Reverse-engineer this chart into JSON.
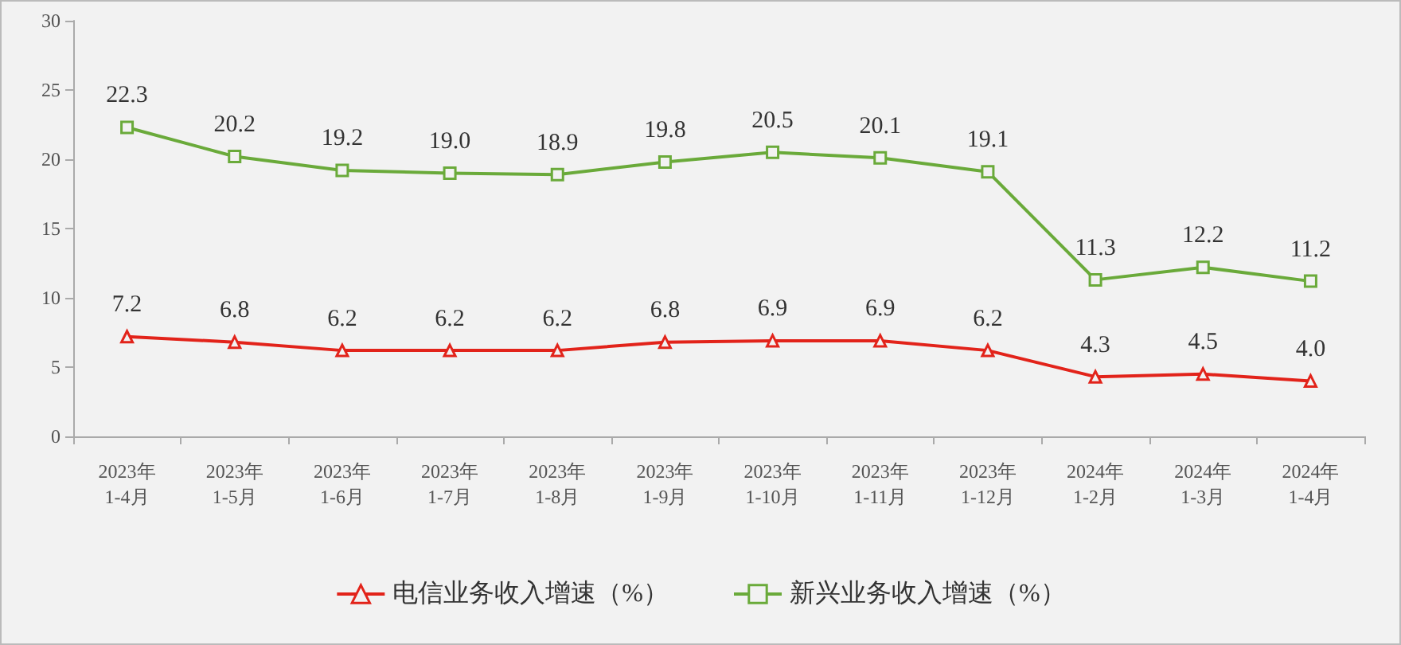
{
  "chart_data": {
    "type": "line",
    "categories": [
      "2023年\n1-4月",
      "2023年\n1-5月",
      "2023年\n1-6月",
      "2023年\n1-7月",
      "2023年\n1-8月",
      "2023年\n1-9月",
      "2023年\n1-10月",
      "2023年\n1-11月",
      "2023年\n1-12月",
      "2024年\n1-2月",
      "2024年\n1-3月",
      "2024年\n1-4月"
    ],
    "series": [
      {
        "name": "电信业务收入增速（%）",
        "color": "#e2231a",
        "marker": "triangle",
        "values": [
          7.2,
          6.8,
          6.2,
          6.2,
          6.2,
          6.8,
          6.9,
          6.9,
          6.2,
          4.3,
          4.5,
          4.0
        ],
        "value_labels": [
          "7.2",
          "6.8",
          "6.2",
          "6.2",
          "6.2",
          "6.8",
          "6.9",
          "6.9",
          "6.2",
          "4.3",
          "4.5",
          "4.0"
        ]
      },
      {
        "name": "新兴业务收入增速（%）",
        "color": "#6aaa3a",
        "marker": "square",
        "values": [
          22.3,
          20.2,
          19.2,
          19.0,
          18.9,
          19.8,
          20.5,
          20.1,
          19.1,
          11.3,
          12.2,
          11.2
        ],
        "value_labels": [
          "22.3",
          "20.2",
          "19.2",
          "19.0",
          "18.9",
          "19.8",
          "20.5",
          "20.1",
          "19.1",
          "11.3",
          "12.2",
          "11.2"
        ]
      }
    ],
    "ylim": [
      0,
      30
    ],
    "yticks": [
      0,
      5,
      10,
      15,
      20,
      25,
      30
    ],
    "grid": false,
    "legend": "bottom"
  }
}
